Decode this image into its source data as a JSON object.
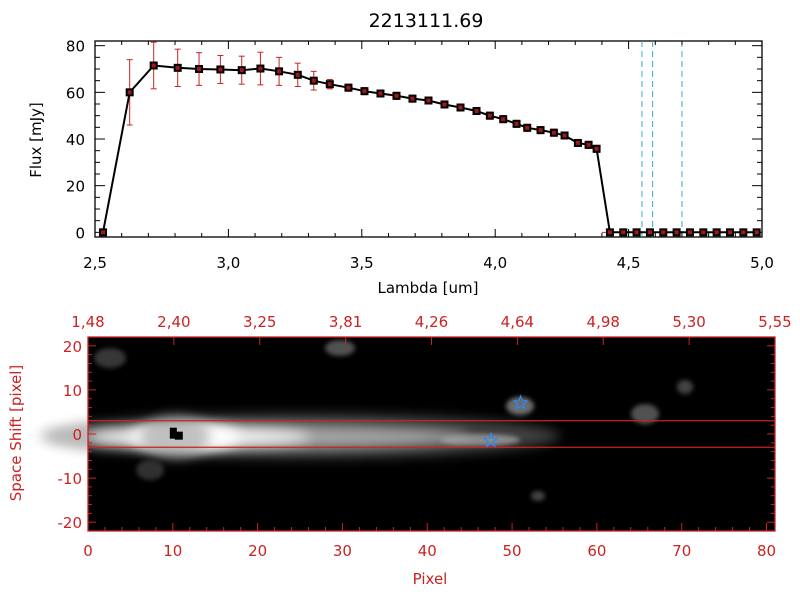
{
  "chart_data": [
    {
      "type": "line",
      "title": "2213111.69",
      "xlabel": "Lambda [um]",
      "ylabel": "Flux [mJy]",
      "xlim": [
        2.5,
        5.0
      ],
      "ylim": [
        -2,
        82
      ],
      "xticks": [
        "2.5",
        "3.0",
        "3.5",
        "4.0",
        "4.5",
        "5.0"
      ],
      "yticks": [
        "0",
        "20",
        "40",
        "60",
        "80"
      ],
      "series": [
        {
          "x": [
            2.53,
            2.63,
            2.72,
            2.81,
            2.89,
            2.97,
            3.05,
            3.12,
            3.19,
            3.26,
            3.32,
            3.38,
            3.45,
            3.51,
            3.57,
            3.63,
            3.69,
            3.75,
            3.81,
            3.87,
            3.93,
            3.98,
            4.03,
            4.08,
            4.12,
            4.17,
            4.22,
            4.26,
            4.31,
            4.35,
            4.38,
            4.43,
            4.48,
            4.53,
            4.58,
            4.63,
            4.68,
            4.73,
            4.78,
            4.83,
            4.88,
            4.93,
            4.98
          ],
          "y": [
            0,
            60,
            71.5,
            70.5,
            70,
            69.8,
            69.5,
            70.2,
            69,
            67.5,
            65,
            63.5,
            62,
            60.5,
            59.5,
            58.5,
            57.3,
            56.5,
            54.8,
            53.5,
            52,
            50,
            48.5,
            46.5,
            44.8,
            43.8,
            42.7,
            41.5,
            38.3,
            37.5,
            35.8,
            0,
            0,
            0,
            0,
            0,
            0,
            0,
            0,
            0,
            0,
            0,
            0
          ],
          "err": [
            0,
            14,
            10,
            8,
            7,
            6,
            6,
            7,
            6,
            5,
            4,
            2,
            1.5,
            1.5,
            1.5,
            1.5,
            1.5,
            1.5,
            1.5,
            1.5,
            1.5,
            1.5,
            1.5,
            1.5,
            1.5,
            1.5,
            1.5,
            1.5,
            1.5,
            1.5,
            1.5,
            0,
            0,
            0,
            0,
            0,
            0,
            0,
            0,
            0,
            0,
            0,
            0
          ]
        }
      ],
      "reference_lines": {
        "x": [
          4.55,
          4.59,
          4.7
        ],
        "color": "#33aacc"
      }
    },
    {
      "type": "heatmap",
      "xlabel": "Pixel",
      "ylabel": "Space Shift [pixel]",
      "xlim": [
        0,
        81
      ],
      "ylim": [
        -22,
        22
      ],
      "xticks": [
        "0",
        "10",
        "20",
        "30",
        "40",
        "50",
        "60",
        "70",
        "80"
      ],
      "yticks": [
        "-20",
        "-10",
        "0",
        "10",
        "20"
      ],
      "top_axis_ticks": [
        "1.48",
        "2.40",
        "3.25",
        "3.81",
        "4.26",
        "4.64",
        "4.98",
        "5.30",
        "5.55"
      ],
      "aperture_y": [
        3,
        -3
      ],
      "marker_square": {
        "x": 10,
        "y": 0.3
      },
      "marker_stars": [
        {
          "x": 51,
          "y": 7
        },
        {
          "x": 47.5,
          "y": -1.5
        }
      ],
      "colors": {
        "axis": "#cc2222",
        "star": "#3388ee",
        "aperture": "#cc2222"
      }
    }
  ]
}
